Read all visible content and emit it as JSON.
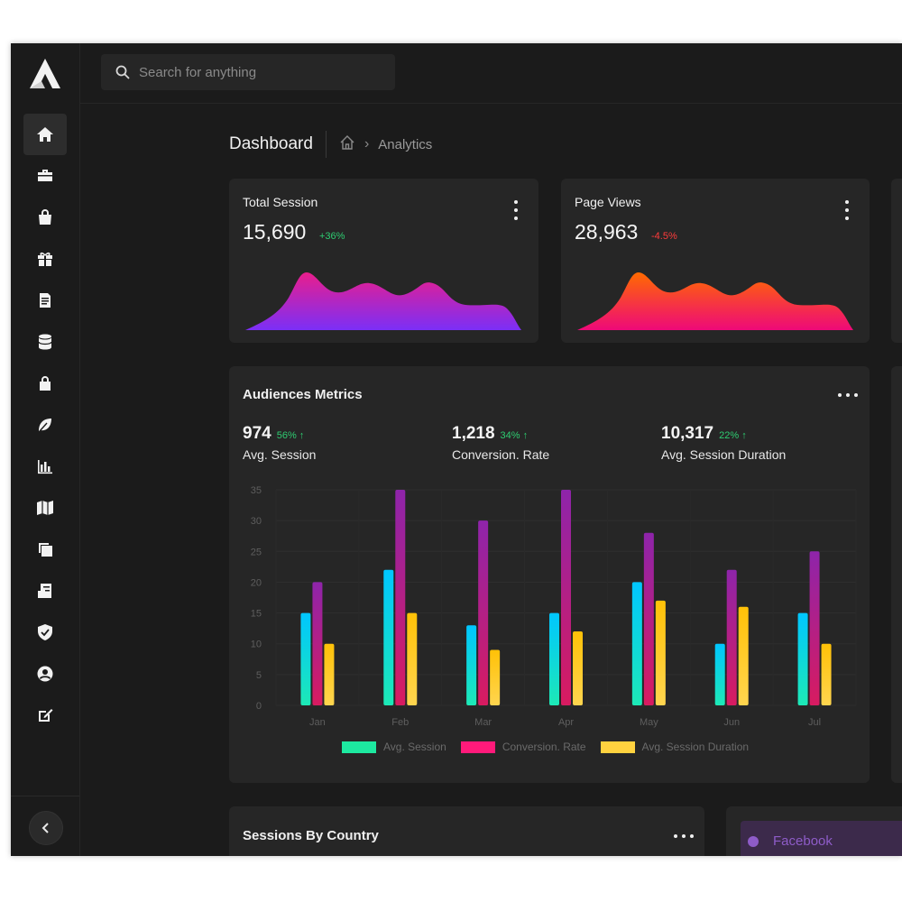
{
  "search": {
    "placeholder": "Search for anything"
  },
  "sidebar": {
    "icons": [
      "home-icon",
      "briefcase-icon",
      "shopping-bag-icon",
      "gift-icon",
      "document-icon",
      "database-icon",
      "lock-icon",
      "leaf-icon",
      "bar-chart-icon",
      "map-icon",
      "copy-icon",
      "invoice-icon",
      "shield-icon",
      "user-circle-icon",
      "edit-icon"
    ],
    "active_index": 0
  },
  "page": {
    "title": "Dashboard",
    "breadcrumb_current": "Analytics"
  },
  "stat_cards": [
    {
      "label": "Total Session",
      "value": "15,690",
      "change": "+36%",
      "change_color": "#2ecc71",
      "gradient": [
        "#e91e8c",
        "#7b2ff7"
      ]
    },
    {
      "label": "Page Views",
      "value": "28,963",
      "change": "-4.5%",
      "change_color": "#ff3b3b",
      "gradient": [
        "#ff6a00",
        "#ee0979"
      ]
    }
  ],
  "audience": {
    "title": "Audiences Metrics",
    "metrics": [
      {
        "value": "974",
        "change": "56% ↑",
        "label": "Avg. Session"
      },
      {
        "value": "1,218",
        "change": "34% ↑",
        "label": "Conversion. Rate"
      },
      {
        "value": "10,317",
        "change": "22% ↑",
        "label": "Avg. Session Duration"
      }
    ]
  },
  "chart_data": {
    "type": "bar",
    "categories": [
      "Jan",
      "Feb",
      "Mar",
      "Apr",
      "May",
      "Jun",
      "Jul"
    ],
    "series": [
      {
        "name": "Avg. Session",
        "values": [
          15,
          22,
          13,
          15,
          20,
          10,
          15
        ],
        "color": [
          "#00c6ff",
          "#1de9b6"
        ]
      },
      {
        "name": "Conversion. Rate",
        "values": [
          20,
          35,
          30,
          35,
          28,
          22,
          25
        ],
        "color": [
          "#8e24aa",
          "#d81b60"
        ]
      },
      {
        "name": "Avg. Session Duration",
        "values": [
          10,
          15,
          9,
          12,
          17,
          16,
          10
        ],
        "color": [
          "#ffc107",
          "#ffd54f"
        ]
      }
    ],
    "yticks": [
      0,
      5,
      10,
      15,
      20,
      25,
      30,
      35
    ],
    "ylim": [
      0,
      35
    ],
    "grid": true,
    "legend_position": "bottom",
    "legend_colors": [
      "#1de9a0",
      "#ff1a7a",
      "#ffd23f"
    ]
  },
  "sessions_by_country": {
    "title": "Sessions By Country"
  },
  "social": {
    "label": "Facebook"
  }
}
